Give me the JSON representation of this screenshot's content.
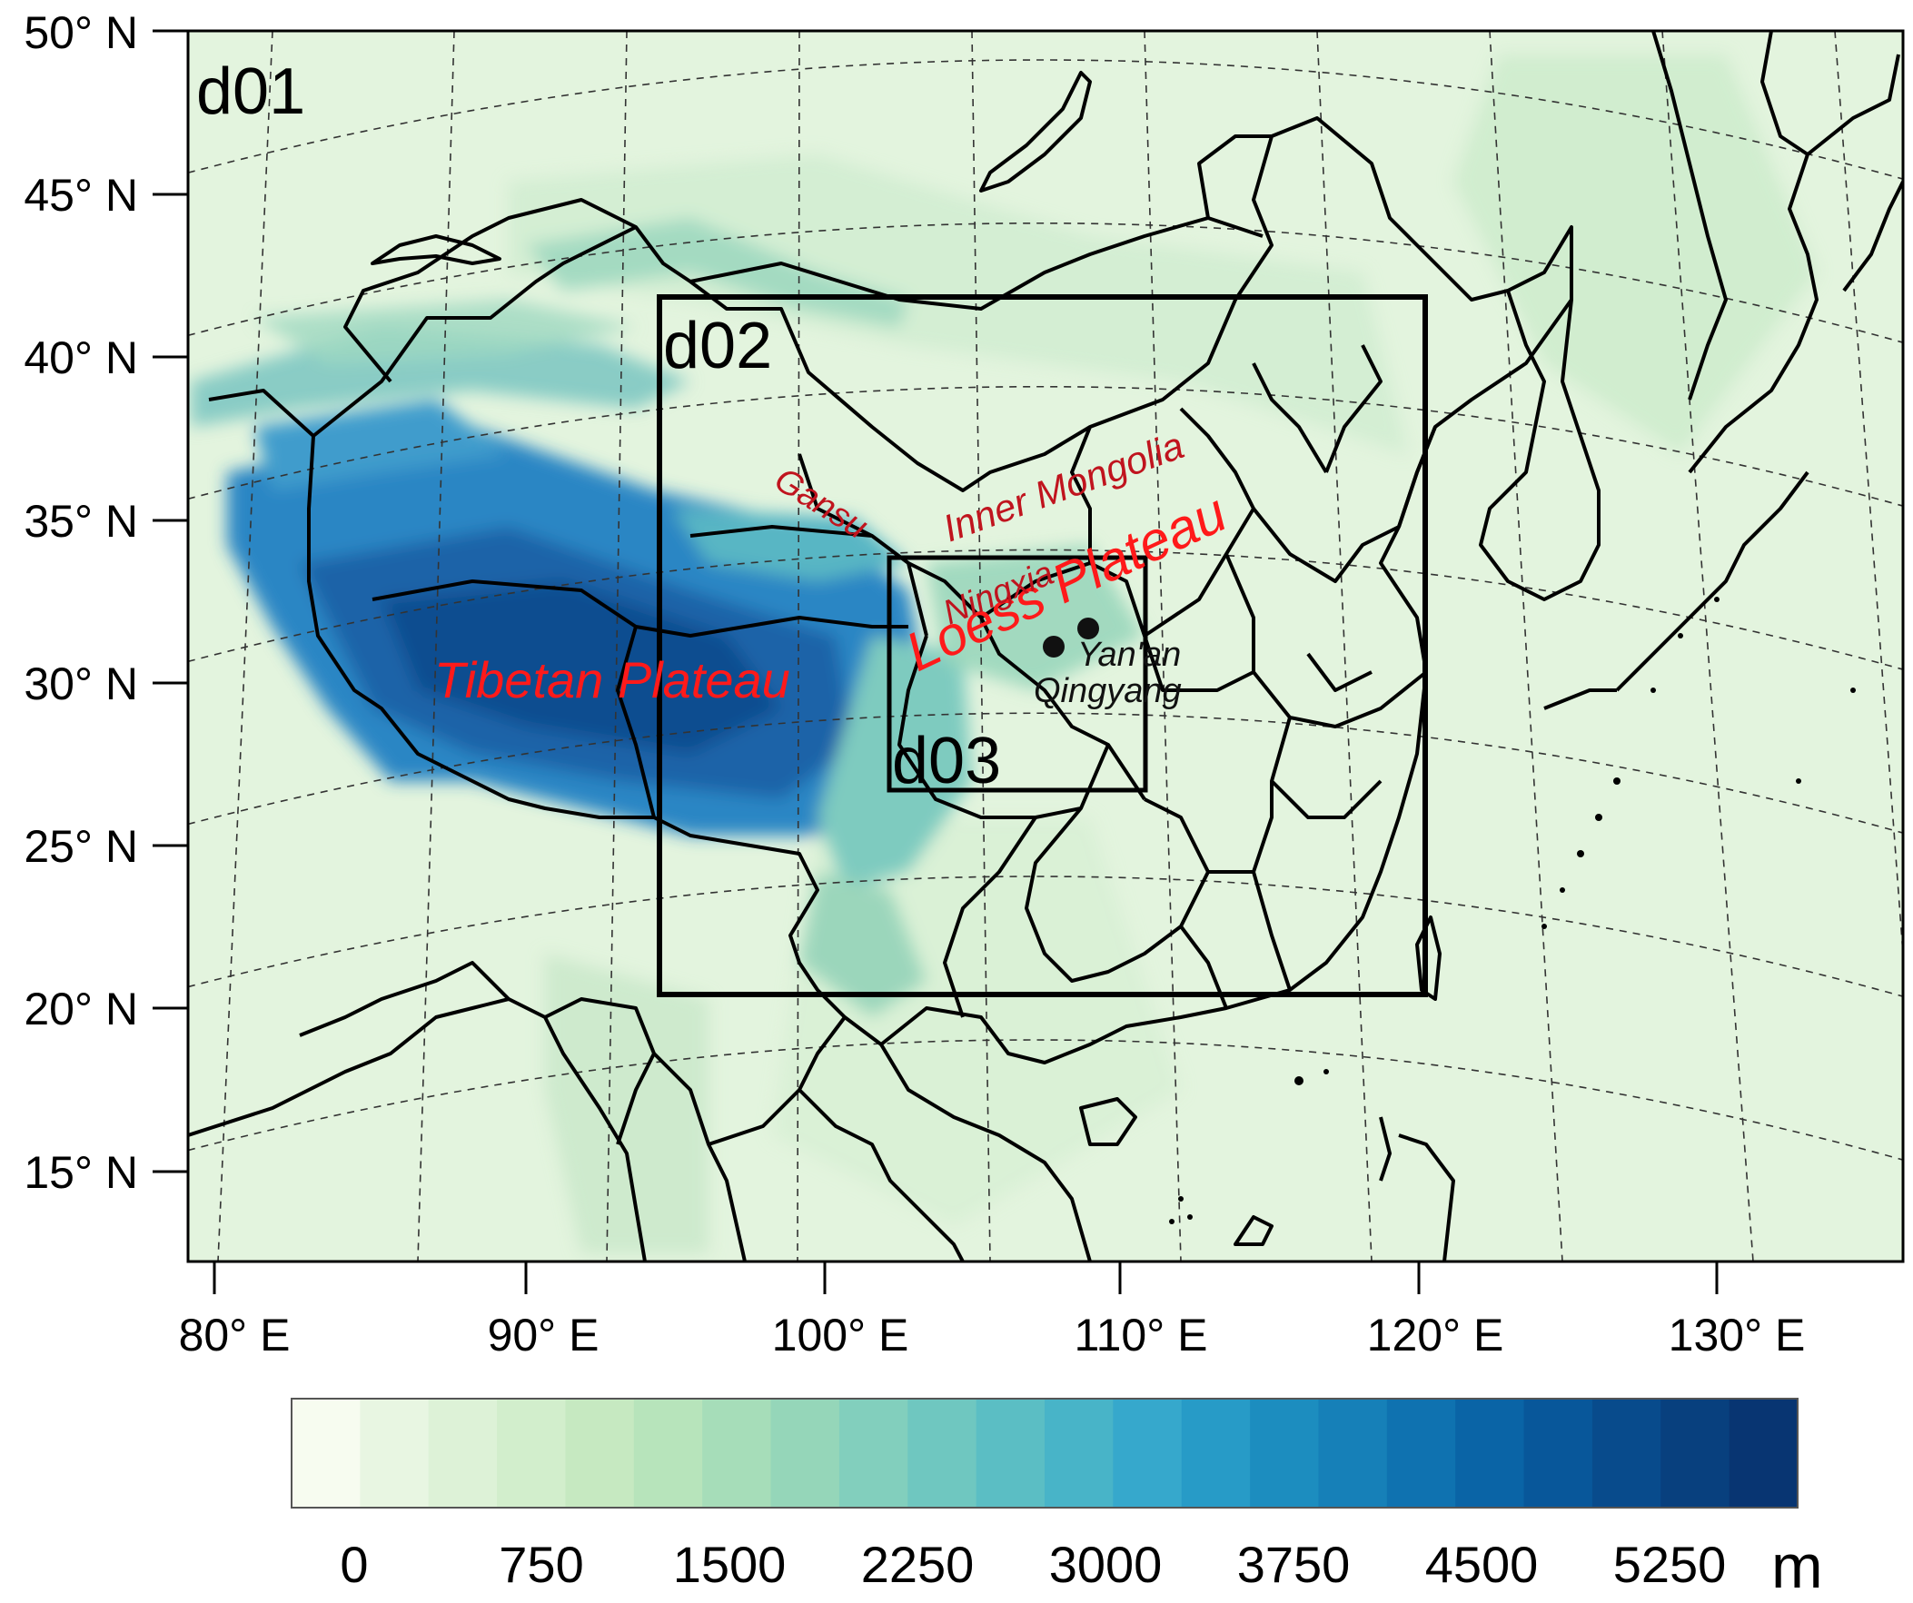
{
  "map": {
    "domain_labels": {
      "d01": "d01",
      "d02": "d02",
      "d03": "d03"
    },
    "lat_ticks": [
      "50° N",
      "45° N",
      "40° N",
      "35° N",
      "30° N",
      "25° N",
      "20° N",
      "15° N"
    ],
    "lon_ticks": [
      "80° E",
      "90° E",
      "100° E",
      "110° E",
      "120° E",
      "130° E"
    ],
    "regions": {
      "tibetan_plateau": "Tibetan Plateau",
      "loess_plateau": "Loess Plateau",
      "inner_mongolia": "Inner Mongolia",
      "gansu": "Gansu",
      "ningxia": "Ningxia"
    },
    "cities": {
      "yanan": "Yan'an",
      "qingyang": "Qingyang"
    },
    "colors": {
      "region_label": "#ff1a1a",
      "province_label": "#c0141e",
      "border": "#000000"
    }
  },
  "colorbar": {
    "unit": "m",
    "tick_labels": [
      "0",
      "750",
      "1500",
      "2250",
      "3000",
      "3750",
      "4500",
      "5250"
    ],
    "colors": [
      "#f7fcf0",
      "#e8f6e2",
      "#ddf2d7",
      "#d2eecc",
      "#c6e9c1",
      "#b7e4bb",
      "#a6ddb9",
      "#95d6b9",
      "#82cfbd",
      "#6fc7c0",
      "#5bbec4",
      "#48b4c8",
      "#36a8cc",
      "#279bc7",
      "#1c8dbf",
      "#1680b8",
      "#0f72b0",
      "#0a64a6",
      "#08579a",
      "#084b8c",
      "#08407e",
      "#083572"
    ]
  }
}
